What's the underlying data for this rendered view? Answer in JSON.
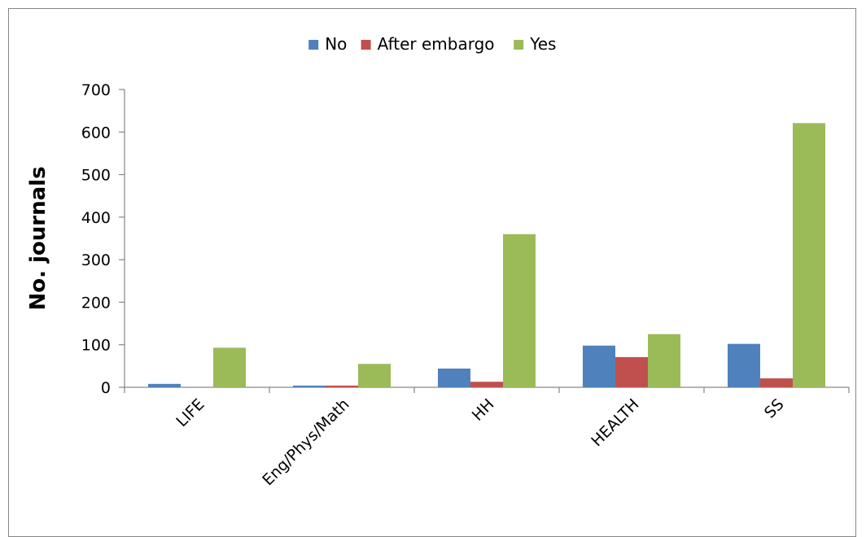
{
  "chart_data": {
    "type": "bar",
    "title": "",
    "xlabel": "",
    "ylabel": "No. journals",
    "categories": [
      "LIFE",
      "Eng/Phys/Math",
      "HH",
      "HEALTH",
      "SS"
    ],
    "series": [
      {
        "name": "No",
        "color": "#4F81BD",
        "values": [
          8,
          4,
          44,
          98,
          102
        ]
      },
      {
        "name": "After embargo",
        "color": "#C0504D",
        "values": [
          0,
          4,
          13,
          71,
          21
        ]
      },
      {
        "name": "Yes",
        "color": "#9BBB59",
        "values": [
          93,
          55,
          360,
          125,
          621
        ]
      }
    ],
    "ylim": [
      0,
      700
    ],
    "yticks": [
      0,
      100,
      200,
      300,
      400,
      500,
      600,
      700
    ],
    "grid": false,
    "legend_position": "top"
  }
}
